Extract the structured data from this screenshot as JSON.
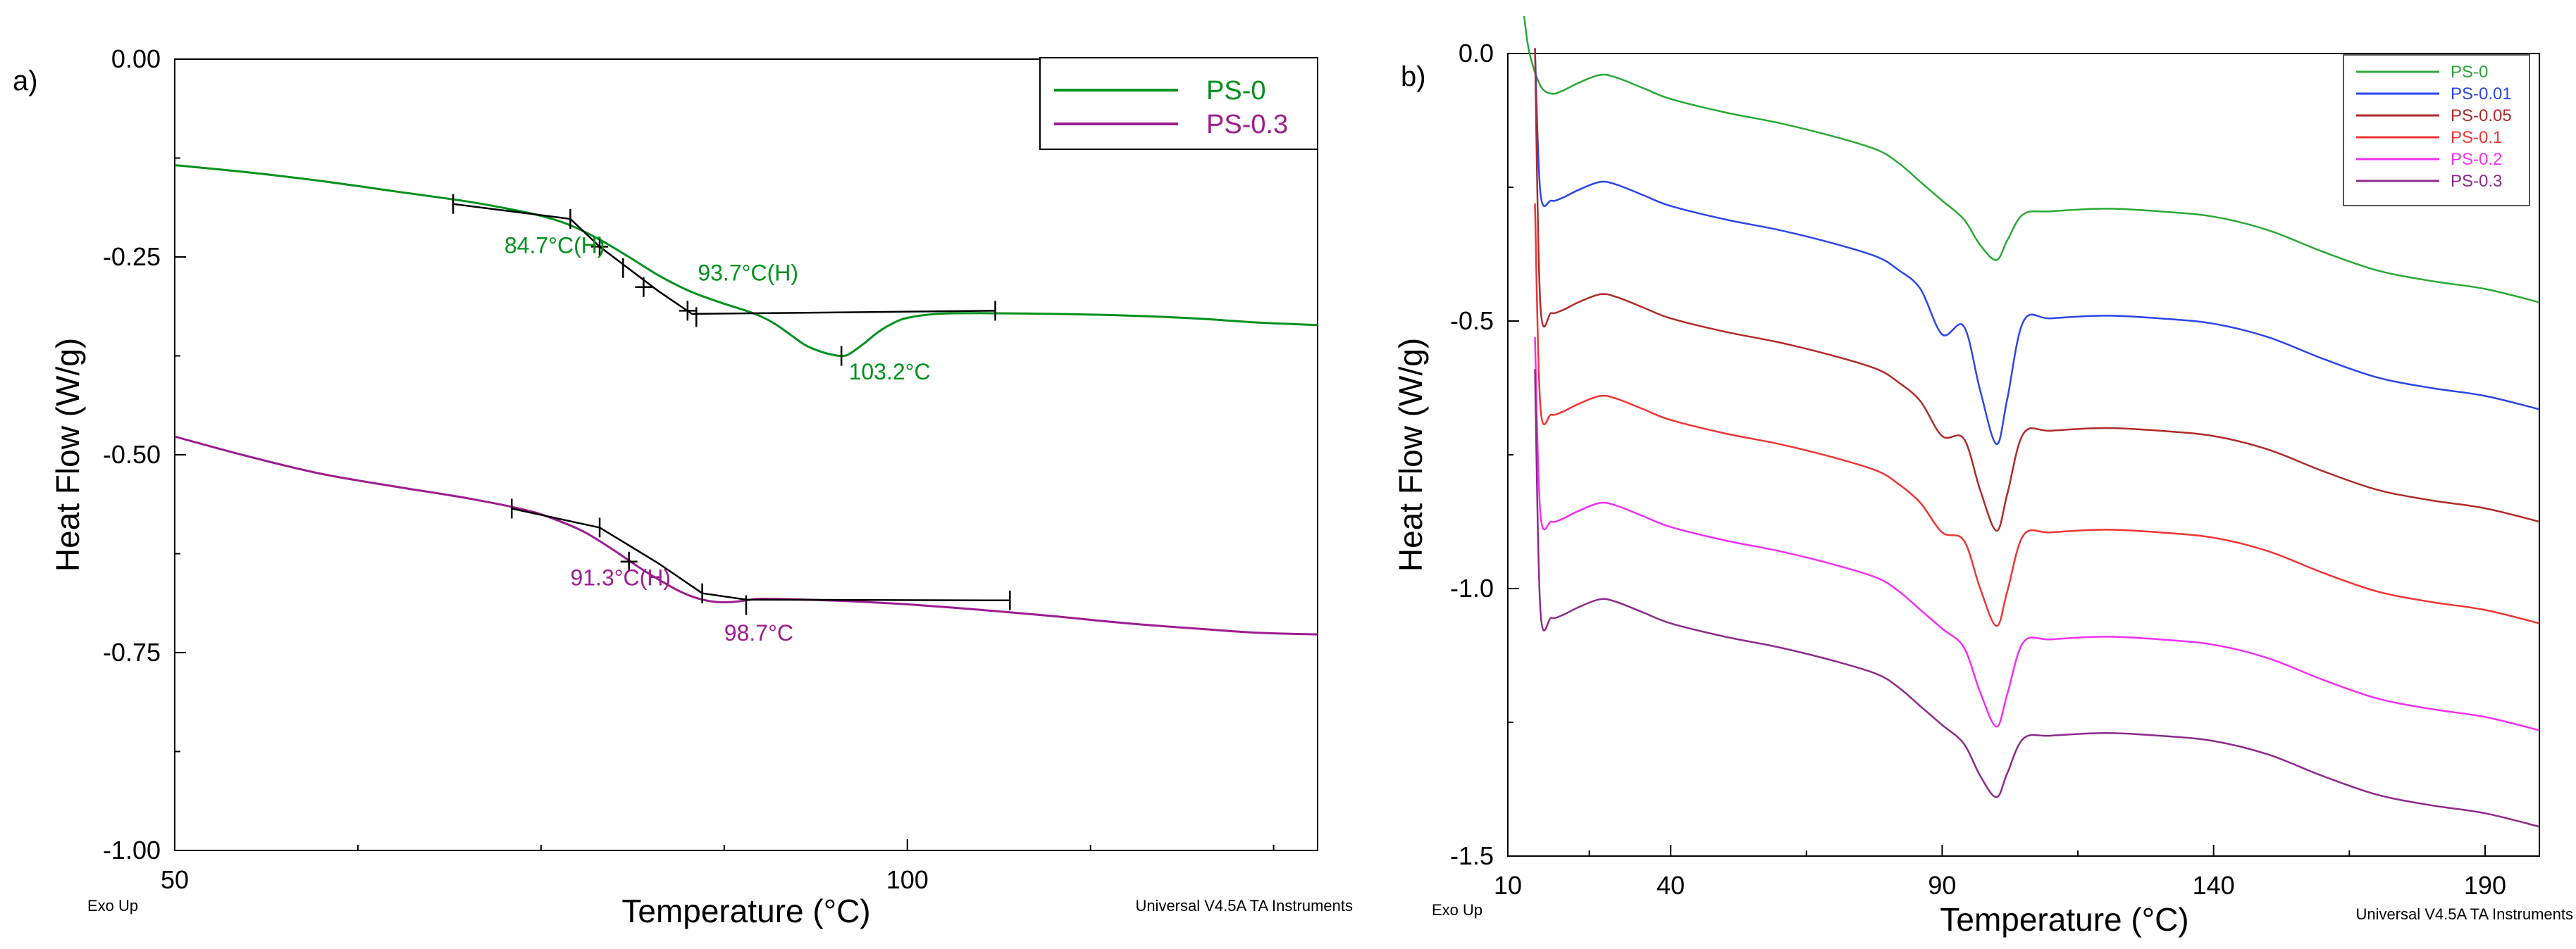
{
  "chart_data": [
    {
      "type": "line",
      "panel_label": "a)",
      "xlabel": "Temperature (°C)",
      "ylabel": "Heat Flow (W/g)",
      "xlim": [
        50,
        128
      ],
      "ylim": [
        -1.0,
        0.0
      ],
      "x_ticks": [
        {
          "value": 50,
          "label": "50"
        },
        {
          "value": 100,
          "label": "100"
        }
      ],
      "y_ticks": [
        {
          "value": 0.0,
          "label": "0.00"
        },
        {
          "value": -0.25,
          "label": "-0.25"
        },
        {
          "value": -0.5,
          "label": "-0.50"
        },
        {
          "value": -0.75,
          "label": "-0.75"
        },
        {
          "value": -1.0,
          "label": "-1.00"
        }
      ],
      "footer_left": "Exo Up",
      "footer_right": "Universal V4.5A TA Instruments",
      "legend_position": "top-right",
      "series": [
        {
          "name": "PS-0",
          "color": "#00901e",
          "points": [
            [
              50,
              -0.134
            ],
            [
              55,
              -0.143
            ],
            [
              60,
              -0.154
            ],
            [
              65,
              -0.167
            ],
            [
              70,
              -0.18
            ],
            [
              73,
              -0.19
            ],
            [
              75,
              -0.198
            ],
            [
              77,
              -0.21
            ],
            [
              79,
              -0.228
            ],
            [
              81,
              -0.25
            ],
            [
              83,
              -0.273
            ],
            [
              85,
              -0.292
            ],
            [
              87,
              -0.306
            ],
            [
              89,
              -0.318
            ],
            [
              90,
              -0.325
            ],
            [
              91,
              -0.335
            ],
            [
              92,
              -0.348
            ],
            [
              93,
              -0.361
            ],
            [
              94,
              -0.369
            ],
            [
              95,
              -0.374
            ],
            [
              95.5,
              -0.375
            ],
            [
              96,
              -0.373
            ],
            [
              97,
              -0.36
            ],
            [
              98,
              -0.345
            ],
            [
              99,
              -0.334
            ],
            [
              100,
              -0.327
            ],
            [
              102,
              -0.322
            ],
            [
              105,
              -0.321
            ],
            [
              110,
              -0.322
            ],
            [
              115,
              -0.324
            ],
            [
              120,
              -0.328
            ],
            [
              124,
              -0.333
            ],
            [
              128,
              -0.336
            ]
          ]
        },
        {
          "name": "PS-0.3",
          "color": "#9c1d8e",
          "points": [
            [
              50,
              -0.477
            ],
            [
              55,
              -0.502
            ],
            [
              60,
              -0.524
            ],
            [
              65,
              -0.54
            ],
            [
              70,
              -0.555
            ],
            [
              74,
              -0.57
            ],
            [
              76,
              -0.582
            ],
            [
              78,
              -0.598
            ],
            [
              80,
              -0.621
            ],
            [
              82,
              -0.646
            ],
            [
              84,
              -0.668
            ],
            [
              85,
              -0.677
            ],
            [
              86,
              -0.683
            ],
            [
              87,
              -0.686
            ],
            [
              88,
              -0.686
            ],
            [
              89,
              -0.684
            ],
            [
              90,
              -0.682
            ],
            [
              93,
              -0.683
            ],
            [
              96,
              -0.685
            ],
            [
              100,
              -0.689
            ],
            [
              105,
              -0.696
            ],
            [
              110,
              -0.704
            ],
            [
              115,
              -0.713
            ],
            [
              120,
              -0.72
            ],
            [
              124,
              -0.725
            ],
            [
              128,
              -0.727
            ]
          ]
        },
        {
          "name": "analysis-tangents",
          "color": "#000000",
          "segments": [
            [
              [
                69,
                -0.183
              ],
              [
                77,
                -0.202
              ],
              [
                79,
                -0.237
              ],
              [
                83,
                -0.293
              ],
              [
                85.3,
                -0.322
              ],
              [
                106,
                -0.318
              ]
            ],
            [
              [
                73,
                -0.568
              ],
              [
                79,
                -0.592
              ],
              [
                83,
                -0.637
              ],
              [
                86,
                -0.675
              ],
              [
                89,
                -0.683
              ],
              [
                107,
                -0.684
              ]
            ]
          ],
          "ticks": [
            [
              69,
              -0.183
            ],
            [
              77,
              -0.202
            ],
            [
              79,
              -0.237
            ],
            [
              80.6,
              -0.264
            ],
            [
              82,
              -0.288
            ],
            [
              85,
              -0.318
            ],
            [
              85.6,
              -0.326
            ],
            [
              106,
              -0.318
            ],
            [
              95.5,
              -0.375
            ],
            [
              73,
              -0.568
            ],
            [
              79,
              -0.592
            ],
            [
              81,
              -0.635
            ],
            [
              86,
              -0.675
            ],
            [
              89,
              -0.69
            ],
            [
              107,
              -0.684
            ]
          ],
          "crosses": [
            [
              79,
              -0.237
            ],
            [
              82,
              -0.288
            ],
            [
              85,
              -0.318
            ],
            [
              81,
              -0.635
            ]
          ]
        }
      ],
      "annotations": [
        {
          "text": "84.7°C(H)",
          "color": "#00901e",
          "x": 72.5,
          "y": -0.245
        },
        {
          "text": "93.7°C(H)",
          "color": "#00901e",
          "x": 85.7,
          "y": -0.28
        },
        {
          "text": "103.2°C",
          "color": "#00901e",
          "x": 96,
          "y": -0.405
        },
        {
          "text": "91.3°C(H)",
          "color": "#9c1d8e",
          "x": 77,
          "y": -0.665
        },
        {
          "text": "98.7°C",
          "color": "#9c1d8e",
          "x": 87.5,
          "y": -0.735
        }
      ]
    },
    {
      "type": "line",
      "panel_label": "b)",
      "xlabel": "Temperature (°C)",
      "ylabel": "Heat Flow (W/g)",
      "xlim": [
        10,
        200
      ],
      "ylim": [
        -1.5,
        0.0
      ],
      "x_ticks": [
        {
          "value": 10,
          "label": "10"
        },
        {
          "value": 40,
          "label": "40"
        },
        {
          "value": 90,
          "label": "90"
        },
        {
          "value": 140,
          "label": "140"
        },
        {
          "value": 190,
          "label": "190"
        }
      ],
      "y_ticks": [
        {
          "value": 0.0,
          "label": "0.0"
        },
        {
          "value": -0.5,
          "label": "-0.5"
        },
        {
          "value": -1.0,
          "label": "-1.0"
        },
        {
          "value": -1.5,
          "label": "-1.5"
        }
      ],
      "footer_left": "Exo Up",
      "footer_right": "Universal V4.5A TA Instruments",
      "legend_position": "top-right",
      "series": [
        {
          "name": "PS-0",
          "color": "#2aa836",
          "offset": 0.0,
          "start_offset": 0.07,
          "dip": 0.06,
          "shoulder": 0.0
        },
        {
          "name": "PS-0.01",
          "color": "#2c45e8",
          "offset": -0.2,
          "start_offset": 0.21,
          "dip": 0.3,
          "shoulder": 0.05
        },
        {
          "name": "PS-0.05",
          "color": "#b02a2a",
          "offset": -0.41,
          "start_offset": 0.42,
          "dip": 0.22,
          "shoulder": 0.03
        },
        {
          "name": "PS-0.1",
          "color": "#ee3535",
          "offset": -0.6,
          "start_offset": 0.32,
          "dip": 0.2,
          "shoulder": 0.02
        },
        {
          "name": "PS-0.2",
          "color": "#f030f0",
          "offset": -0.8,
          "start_offset": 0.27,
          "dip": 0.18,
          "shoulder": 0.0
        },
        {
          "name": "PS-0.3",
          "color": "#8c2a8c",
          "offset": -0.98,
          "start_offset": 0.39,
          "dip": 0.1,
          "shoulder": 0.0
        }
      ]
    }
  ]
}
